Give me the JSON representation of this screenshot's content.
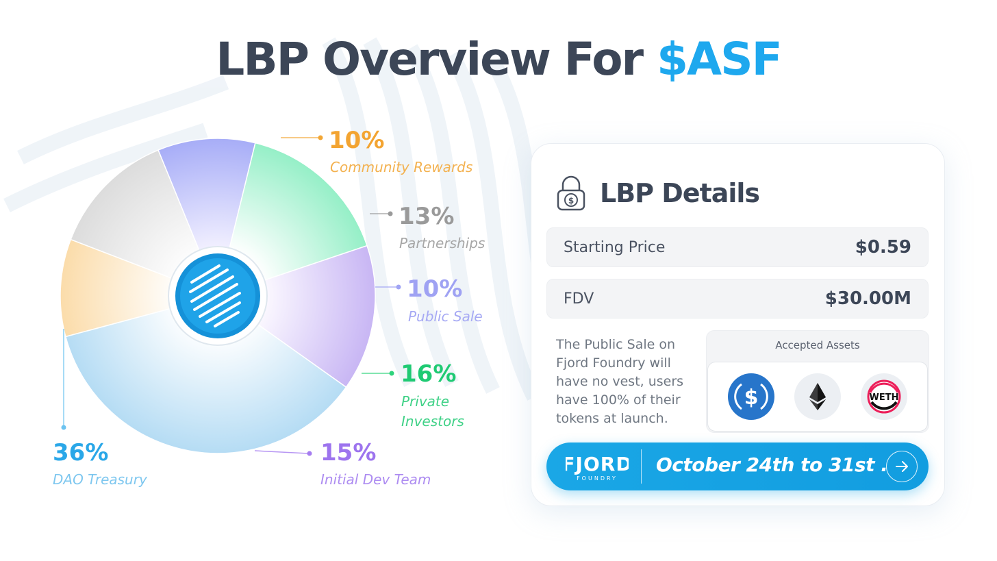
{
  "title": {
    "main": "LBP Overview For",
    "accent": "$ASF"
  },
  "chart_data": {
    "type": "pie",
    "title": "LBP Overview For $ASF",
    "unit": "%",
    "slices": [
      {
        "label": "Community Rewards",
        "value": 10,
        "pct_label": "10%",
        "color": "#f2a634"
      },
      {
        "label": "Partnerships",
        "value": 13,
        "pct_label": "13%",
        "color": "#9a9a9a"
      },
      {
        "label": "Public Sale",
        "value": 10,
        "pct_label": "10%",
        "color": "#a0a4f4"
      },
      {
        "label": "Private Investors",
        "value": 16,
        "pct_label": "16%",
        "color": "#2ed37c"
      },
      {
        "label": "Initial Dev Team",
        "value": 15,
        "pct_label": "15%",
        "color": "#a57cf0"
      },
      {
        "label": "DAO Treasury",
        "value": 36,
        "pct_label": "36%",
        "color": "#6cc3f0"
      }
    ]
  },
  "details": {
    "title": "LBP Details",
    "lock_icon": "lock-dollar-icon",
    "rows": [
      {
        "label": "Starting Price",
        "value": "$0.59"
      },
      {
        "label": "FDV",
        "value": "$30.00M"
      }
    ],
    "description": "The Public Sale on Fjord Foundry will have no vest, users have 100% of their tokens at launch.",
    "assets_title": "Accepted Assets",
    "assets": [
      {
        "name": "USDC",
        "icon": "usdc-icon"
      },
      {
        "name": "ETH",
        "icon": "ethereum-icon"
      },
      {
        "name": "WETH",
        "icon": "weth-icon"
      }
    ],
    "cta": {
      "brand": "FJORD",
      "brand_sub": "FOUNDRY",
      "text": "October 24th to 31st .",
      "icon": "arrow-right-icon"
    }
  }
}
